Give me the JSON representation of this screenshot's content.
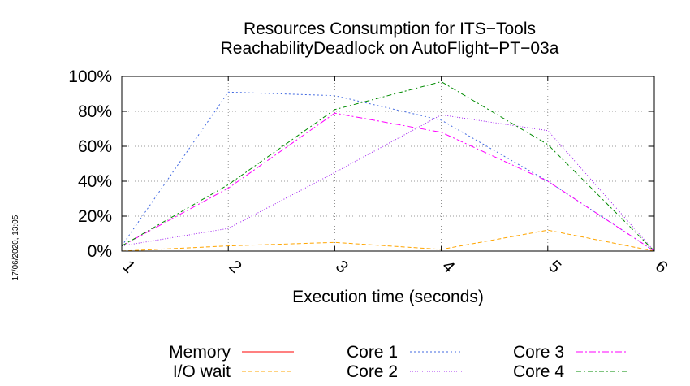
{
  "side_note": "17/06/2020, 13:05",
  "chart_data": {
    "type": "line",
    "title": "Resources Consumption for ITS−Tools",
    "subtitle": "ReachabilityDeadlock on AutoFlight−PT−03a",
    "xlabel": "Execution time (seconds)",
    "ylabel": "",
    "x": [
      1,
      2,
      3,
      4,
      5,
      6
    ],
    "xlim": [
      1,
      6
    ],
    "ylim": [
      0,
      100
    ],
    "x_ticks": [
      "1",
      "2",
      "3",
      "4",
      "5",
      "6"
    ],
    "y_ticks": [
      "0%",
      "20%",
      "40%",
      "60%",
      "80%",
      "100%"
    ],
    "grid": true,
    "legend_position": "bottom",
    "series": [
      {
        "name": "Memory",
        "color": "#ff0000",
        "dash": "",
        "values": [
          0,
          0,
          0,
          0,
          0,
          0
        ]
      },
      {
        "name": "I/O wait",
        "color": "#ffa500",
        "dash": "5,3",
        "values": [
          0,
          3,
          5,
          1,
          12,
          0
        ]
      },
      {
        "name": "Core 1",
        "color": "#4169e1",
        "dash": "2,3",
        "values": [
          3,
          91,
          89,
          75,
          40,
          0
        ]
      },
      {
        "name": "Core 2",
        "color": "#a020f0",
        "dash": "1,2",
        "values": [
          3,
          13,
          45,
          78,
          69,
          0
        ]
      },
      {
        "name": "Core 3",
        "color": "#ff00ff",
        "dash": "8,3,2,3",
        "values": [
          3,
          36,
          79,
          68,
          40,
          0
        ]
      },
      {
        "name": "Core 4",
        "color": "#008b00",
        "dash": "6,3,2,3",
        "values": [
          3,
          38,
          81,
          97,
          61,
          0
        ]
      }
    ]
  }
}
